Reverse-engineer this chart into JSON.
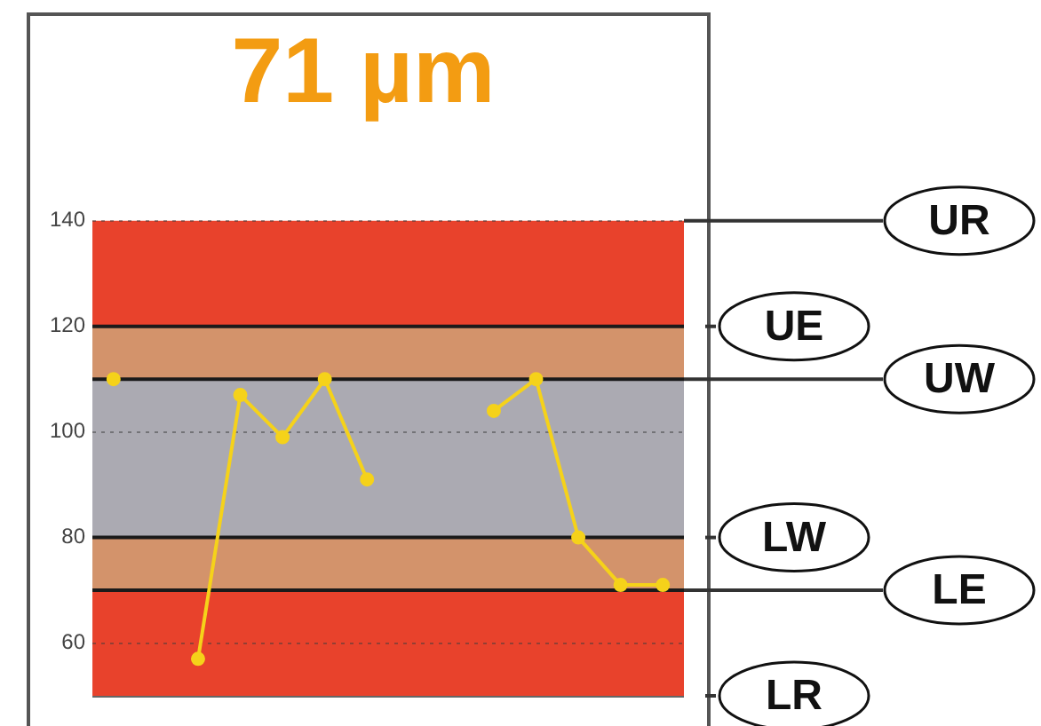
{
  "chart_data": {
    "type": "line",
    "title": "71 µm",
    "categories": [
      null,
      null,
      null,
      null,
      null,
      null,
      null,
      null,
      null,
      null,
      null,
      null,
      null,
      null
    ],
    "series": [
      {
        "color": "#f5d21a",
        "values": [
          110,
          null,
          57,
          107,
          99,
          110,
          91,
          null,
          null,
          104,
          110,
          80,
          71,
          71
        ]
      }
    ],
    "ylim": [
      50,
      140
    ],
    "yticks": [
      60,
      80,
      100,
      120,
      140
    ],
    "grid": "y",
    "legend": false,
    "marker": "circle",
    "line_style": "solid",
    "tick_labels": "y",
    "bands": [
      {
        "axis": "y",
        "from": 120,
        "to": 140,
        "color": "#e8422c"
      },
      {
        "axis": "y",
        "from": 110,
        "to": 120,
        "color": "#d3936b"
      },
      {
        "axis": "y",
        "from": 80,
        "to": 110,
        "color": "#abaab2"
      },
      {
        "axis": "y",
        "from": 70,
        "to": 80,
        "color": "#d3936b"
      },
      {
        "axis": "y",
        "from": 50,
        "to": 70,
        "color": "#e8422c"
      }
    ],
    "ref_lines": [
      {
        "axis": "y",
        "value": 140,
        "label": "UR"
      },
      {
        "axis": "y",
        "value": 120,
        "label": "UE",
        "color": "#1a1a1a"
      },
      {
        "axis": "y",
        "value": 110,
        "label": "UW",
        "color": "#1a1a1a"
      },
      {
        "axis": "y",
        "value": 80,
        "label": "LW",
        "color": "#1a1a1a"
      },
      {
        "axis": "y",
        "value": 70,
        "label": "LE",
        "color": "#1a1a1a"
      },
      {
        "axis": "y",
        "value": 50,
        "label": "LR"
      }
    ]
  }
}
